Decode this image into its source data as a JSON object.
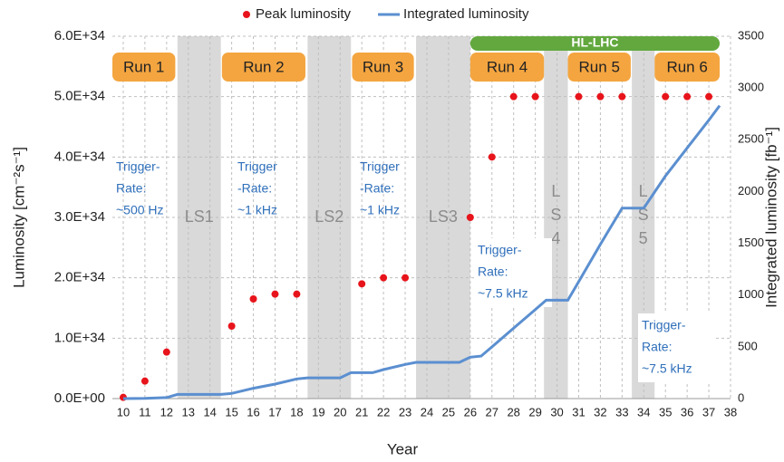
{
  "chart_data": {
    "type": "combo",
    "xlabel": "Year",
    "ylabel": "Luminosity [cm⁻²s⁻¹]",
    "y2label": "Integrated luminosity [fb⁻¹]",
    "xlim": [
      9.5,
      38
    ],
    "xticks": [
      10,
      11,
      12,
      13,
      14,
      15,
      16,
      17,
      18,
      19,
      20,
      21,
      22,
      23,
      24,
      25,
      26,
      27,
      28,
      29,
      30,
      31,
      32,
      33,
      34,
      35,
      36,
      37,
      38
    ],
    "ylim": [
      0,
      6e+34
    ],
    "yticks": [
      {
        "value": 0,
        "label": "0.0E+00"
      },
      {
        "value": 1e+34,
        "label": "1.0E+34"
      },
      {
        "value": 2e+34,
        "label": "2.0E+34"
      },
      {
        "value": 3e+34,
        "label": "3.0E+34"
      },
      {
        "value": 4e+34,
        "label": "4.0E+34"
      },
      {
        "value": 5e+34,
        "label": "5.0E+34"
      },
      {
        "value": 6e+34,
        "label": "6.0E+34"
      }
    ],
    "y2lim": [
      0,
      3500
    ],
    "y2ticks": [
      0,
      500,
      1000,
      1500,
      2000,
      2500,
      3000,
      3500
    ],
    "grid": true,
    "legend": "top",
    "series": [
      {
        "name": "Peak luminosity",
        "type": "scatter",
        "color": "#e8141b",
        "x": [
          10,
          11,
          12,
          15,
          16,
          17,
          18,
          21,
          22,
          23,
          26,
          27,
          28,
          29,
          31,
          32,
          33,
          35,
          36,
          37
        ],
        "values": [
          2e+32,
          2.9e+33,
          7.7e+33,
          1.2e+34,
          1.65e+34,
          1.73e+34,
          1.73e+34,
          1.9e+34,
          2e+34,
          2e+34,
          3e+34,
          4e+34,
          5e+34,
          5e+34,
          5e+34,
          5e+34,
          5e+34,
          5e+34,
          5e+34,
          5e+34
        ]
      },
      {
        "name": "Integrated luminosity",
        "type": "line",
        "axis": "y2",
        "color": "#5b8fd0",
        "x": [
          10,
          11,
          12,
          12.5,
          14.5,
          15,
          16,
          17,
          18,
          18.5,
          20,
          20.5,
          21.5,
          22,
          23,
          23.5,
          25.5,
          26,
          26.5,
          27,
          28,
          29,
          29.5,
          30.5,
          31,
          32,
          33,
          34,
          35,
          36,
          37,
          37.5
        ],
        "values": [
          0,
          2,
          10,
          40,
          40,
          50,
          100,
          140,
          190,
          200,
          200,
          250,
          250,
          280,
          330,
          350,
          350,
          400,
          410,
          500,
          680,
          860,
          950,
          950,
          1130,
          1490,
          1840,
          1840,
          2150,
          2420,
          2690,
          2830
        ]
      }
    ],
    "shutdowns": [
      {
        "label": [
          "LS1"
        ],
        "start": 12.5,
        "end": 14.5
      },
      {
        "label": [
          "LS2"
        ],
        "start": 18.5,
        "end": 20.5
      },
      {
        "label": [
          "LS3"
        ],
        "start": 23.5,
        "end": 26
      },
      {
        "label": [
          "L",
          "S",
          "4"
        ],
        "start": 29.4,
        "end": 30.5
      },
      {
        "label": [
          "L",
          "S",
          "5"
        ],
        "start": 33.45,
        "end": 34.5
      }
    ],
    "shutdown_color": "#d9d9d9",
    "runs": [
      {
        "label": "Run 1",
        "start": 9.5,
        "end": 12.4
      },
      {
        "label": "Run 2",
        "start": 14.55,
        "end": 18.4
      },
      {
        "label": "Run 3",
        "start": 20.55,
        "end": 23.4
      },
      {
        "label": "Run 4",
        "start": 26,
        "end": 29.4
      },
      {
        "label": "Run 5",
        "start": 30.5,
        "end": 33.4
      },
      {
        "label": "Run 6",
        "start": 34.5,
        "end": 37.5
      }
    ],
    "run_color": "#f4a540",
    "phase": {
      "label": "HL-LHC",
      "start": 26,
      "end": 37.5,
      "color": "#62a83e"
    },
    "annotations": [
      [
        "Trigger-",
        "Rate:",
        "~500 Hz"
      ],
      [
        "Trigger",
        "-Rate:",
        "~1 kHz"
      ],
      [
        "Trigger",
        "-Rate:",
        "~1 kHz"
      ],
      [
        "Trigger-",
        "Rate:",
        "~7.5 kHz"
      ],
      [
        "Trigger-",
        "Rate:",
        "~7.5 kHz"
      ]
    ],
    "annotation_color": "#2f6fba"
  }
}
